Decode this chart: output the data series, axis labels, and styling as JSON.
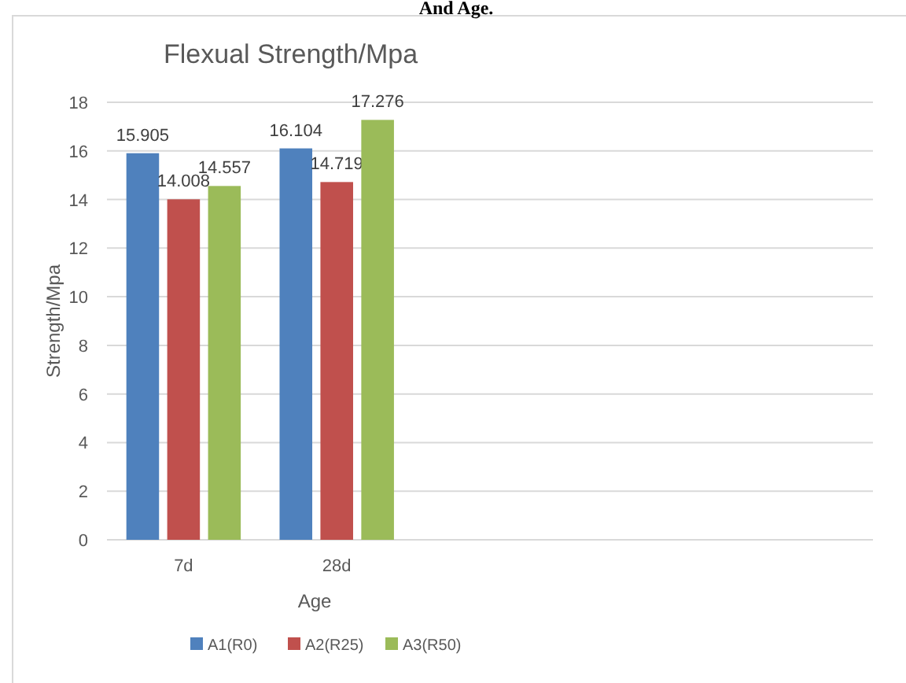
{
  "chart_data": {
    "type": "bar",
    "title": "Flexual Strength/Mpa",
    "xlabel": "Age",
    "ylabel": "Strength/Mpa",
    "annotations": [
      "And Age."
    ],
    "categories": [
      "7d",
      "28d",
      null,
      null,
      null
    ],
    "series": [
      {
        "name": "A1(R0)",
        "color": "#4f81bd",
        "values": [
          15.905,
          16.104,
          null,
          null,
          null
        ]
      },
      {
        "name": "A2(R25)",
        "color": "#c0504d",
        "values": [
          14.008,
          14.719,
          null,
          null,
          null
        ]
      },
      {
        "name": "A3(R50)",
        "color": "#9bbb59",
        "values": [
          14.557,
          17.276,
          null,
          null,
          null
        ]
      }
    ],
    "ylim": [
      0,
      18
    ],
    "yticks": [
      0,
      2,
      4,
      6,
      8,
      10,
      12,
      14,
      16,
      18
    ],
    "grid": "y",
    "legend": "bottom",
    "data_labels": true
  }
}
